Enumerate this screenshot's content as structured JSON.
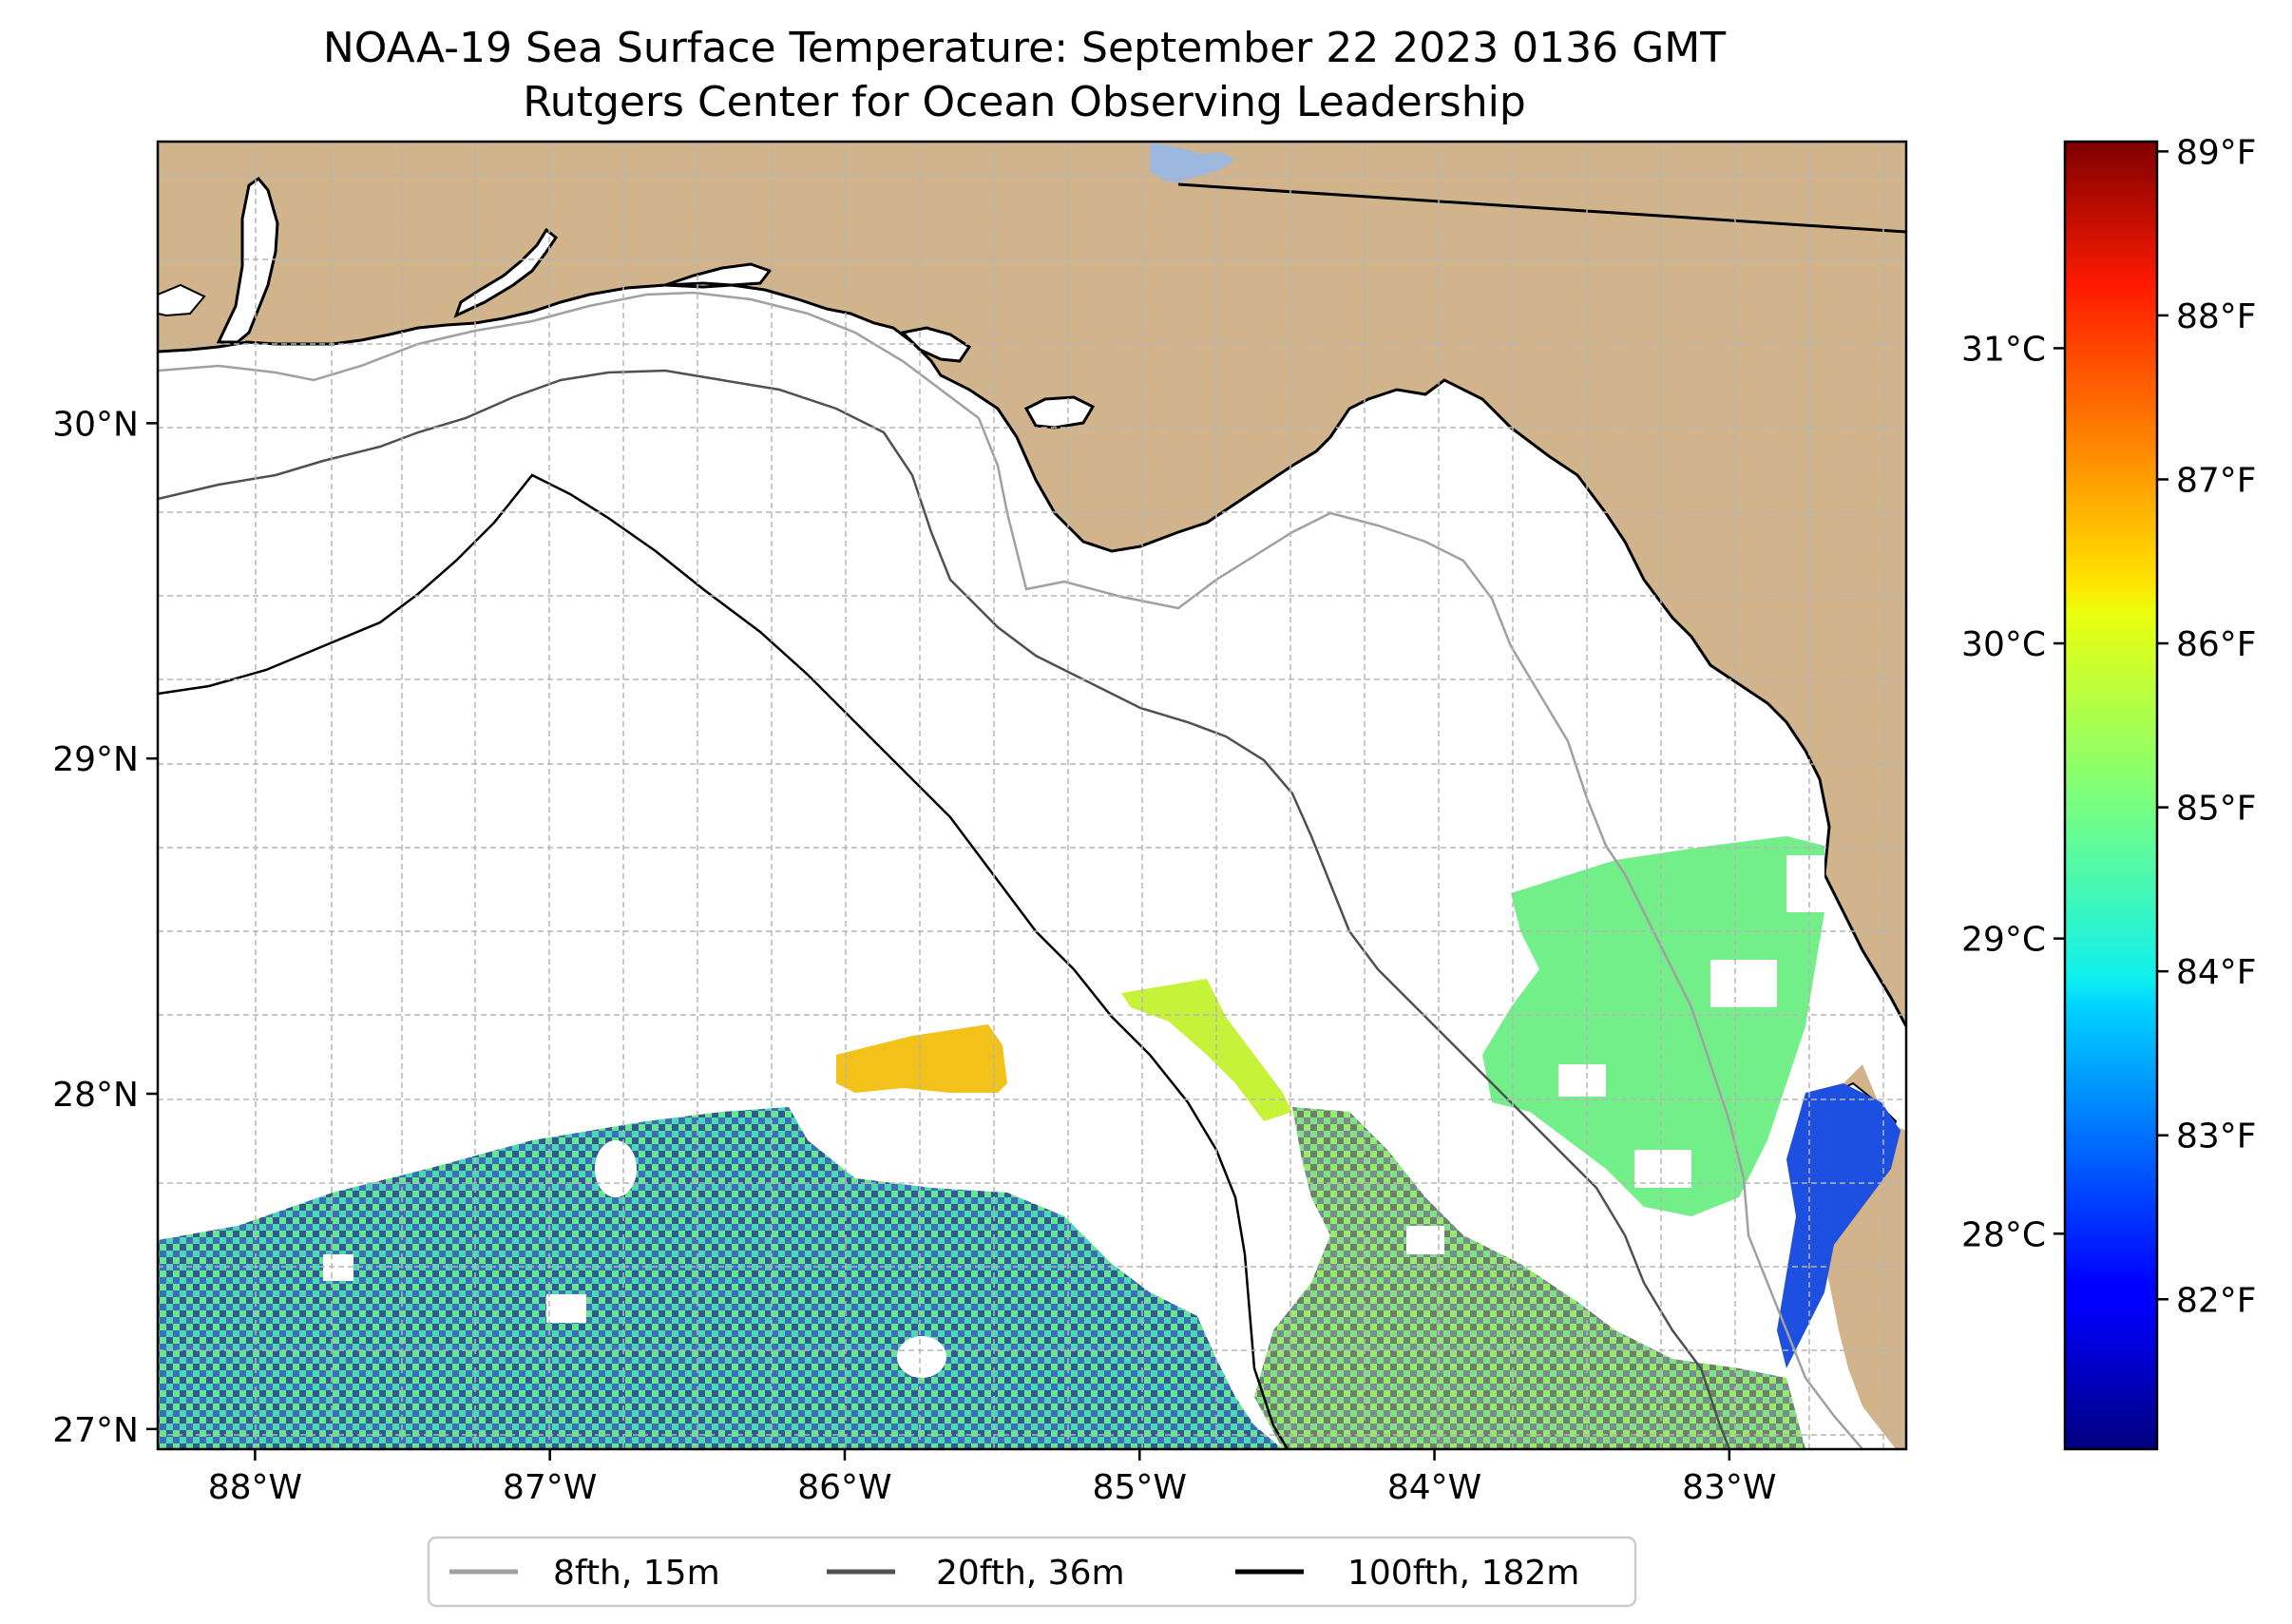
{
  "title": {
    "line1": "NOAA-19 Sea Surface Temperature: September 22 2023 0136 GMT",
    "line2": "Rutgers Center for Ocean Observing Leadership"
  },
  "map": {
    "lon_range": [
      -88.33,
      -82.4
    ],
    "lat_range": [
      26.94,
      30.84
    ],
    "lon_ticks": [
      {
        "value": -88,
        "label": "88°W"
      },
      {
        "value": -87,
        "label": "87°W"
      },
      {
        "value": -86,
        "label": "86°W"
      },
      {
        "value": -85,
        "label": "85°W"
      },
      {
        "value": -84,
        "label": "84°W"
      },
      {
        "value": -83,
        "label": "83°W"
      }
    ],
    "lat_ticks": [
      {
        "value": 27,
        "label": "27°N"
      },
      {
        "value": 28,
        "label": "28°N"
      },
      {
        "value": 29,
        "label": "29°N"
      },
      {
        "value": 30,
        "label": "30°N"
      }
    ],
    "colors": {
      "land": "#d2b48c",
      "water": "#ffffff",
      "lake": "#9db8de",
      "grid": "#b5b5b5",
      "coast": "#000000"
    }
  },
  "colorbar": {
    "celsius_range": [
      27.27,
      31.7
    ],
    "celsius_ticks": [
      {
        "value": 28,
        "label": "28°C"
      },
      {
        "value": 29,
        "label": "29°C"
      },
      {
        "value": 30,
        "label": "30°C"
      },
      {
        "value": 31,
        "label": "31°C"
      }
    ],
    "fahrenheit_ticks": [
      {
        "value": 82,
        "label": "82°F"
      },
      {
        "value": 83,
        "label": "83°F"
      },
      {
        "value": 84,
        "label": "84°F"
      },
      {
        "value": 85,
        "label": "85°F"
      },
      {
        "value": 86,
        "label": "86°F"
      },
      {
        "value": 87,
        "label": "87°F"
      },
      {
        "value": 88,
        "label": "88°F"
      },
      {
        "value": 89,
        "label": "89°F"
      }
    ],
    "colormap": "jet"
  },
  "legend": {
    "items": [
      {
        "label": "8fth, 15m",
        "color": "#a0a0a0"
      },
      {
        "label": "20fth, 36m",
        "color": "#505050"
      },
      {
        "label": "100fth, 182m",
        "color": "#000000"
      }
    ]
  }
}
